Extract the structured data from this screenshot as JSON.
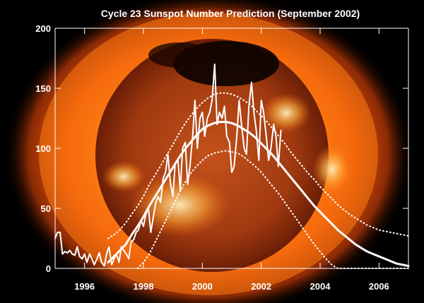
{
  "chart_data": {
    "type": "line",
    "title": "Cycle 23 Sunspot Number Prediction (September 2002)",
    "xlabel": "",
    "ylabel": "",
    "xlim": [
      1995.0,
      2007.0
    ],
    "ylim": [
      0,
      200
    ],
    "x_ticks": [
      1996,
      1998,
      2000,
      2002,
      2004,
      2006
    ],
    "y_ticks": [
      0,
      50,
      100,
      150,
      200
    ],
    "x_tick_labels": [
      "1996",
      "1998",
      "2000",
      "2002",
      "2004",
      "2006"
    ],
    "y_tick_labels": [
      "0",
      "50",
      "100",
      "150",
      "200"
    ],
    "grid": false,
    "legend": "none",
    "background": "X-ray image of the Sun",
    "colors": {
      "series": "#ffffff",
      "text": "#ffffff",
      "background": "#000000",
      "sun_core": "#b83a0c",
      "sun_corona": "#ff7a10"
    },
    "series": [
      {
        "style": "solid-thin",
        "x": [
          1995.0,
          1995.08,
          1995.17,
          1995.25,
          1995.33,
          1995.42,
          1995.5,
          1995.58,
          1995.67,
          1995.75,
          1995.83,
          1995.92,
          1996.0,
          1996.08,
          1996.17,
          1996.25,
          1996.33,
          1996.42,
          1996.5,
          1996.58,
          1996.67,
          1996.75,
          1996.83,
          1996.92,
          1997.0,
          1997.08,
          1997.17,
          1997.25,
          1997.33,
          1997.42,
          1997.5,
          1997.58,
          1997.67,
          1997.75,
          1997.83,
          1997.92,
          1998.0,
          1998.08,
          1998.17,
          1998.25,
          1998.33,
          1998.42,
          1998.5,
          1998.58,
          1998.67,
          1998.75,
          1998.83,
          1998.92,
          1999.0,
          1999.08,
          1999.17,
          1999.25,
          1999.33,
          1999.42,
          1999.5,
          1999.58,
          1999.67,
          1999.75,
          1999.83,
          1999.92,
          2000.0,
          2000.08,
          2000.17,
          2000.25,
          2000.33,
          2000.42,
          2000.5,
          2000.58,
          2000.67,
          2000.75,
          2000.83,
          2000.92,
          2001.0,
          2001.08,
          2001.17,
          2001.25,
          2001.33,
          2001.42,
          2001.5,
          2001.58,
          2001.67,
          2001.75,
          2001.83,
          2001.92,
          2002.0,
          2002.08,
          2002.17,
          2002.25,
          2002.33,
          2002.42,
          2002.5,
          2002.58,
          2002.67
        ],
        "values": [
          25,
          30,
          30,
          12,
          14,
          13,
          15,
          12,
          11,
          18,
          10,
          8,
          12,
          5,
          12,
          8,
          3,
          8,
          13,
          5,
          2,
          12,
          18,
          3,
          8,
          12,
          5,
          18,
          15,
          12,
          8,
          22,
          24,
          30,
          32,
          40,
          35,
          45,
          50,
          30,
          42,
          55,
          60,
          55,
          75,
          80,
          95,
          70,
          60,
          88,
          90,
          65,
          100,
          105,
          70,
          85,
          110,
          140,
          100,
          125,
          130,
          110,
          125,
          130,
          140,
          170,
          120,
          130,
          125,
          135,
          110,
          105,
          80,
          85,
          110,
          140,
          120,
          100,
          95,
          135,
          155,
          130,
          115,
          90,
          140,
          130,
          110,
          90,
          100,
          120,
          110,
          85,
          115
        ]
      },
      {
        "style": "solid-thick",
        "x": [
          1996.8,
          1997.0,
          1997.2,
          1997.4,
          1997.6,
          1997.8,
          1998.0,
          1998.2,
          1998.4,
          1998.6,
          1998.8,
          1999.0,
          1999.2,
          1999.4,
          1999.6,
          1999.8,
          2000.0,
          2000.2,
          2000.4,
          2000.6,
          2000.8,
          2001.0,
          2001.2,
          2001.4,
          2001.6,
          2001.8,
          2002.0,
          2002.2,
          2002.4,
          2002.6,
          2002.8,
          2003.0,
          2003.2,
          2003.4,
          2003.6,
          2003.8,
          2004.0,
          2004.2,
          2004.4,
          2004.6,
          2004.8,
          2005.0,
          2005.2,
          2005.4,
          2005.6,
          2005.8,
          2006.0,
          2006.2,
          2006.4,
          2006.6,
          2006.8,
          2007.0
        ],
        "values": [
          5,
          10,
          15,
          20,
          28,
          35,
          43,
          52,
          60,
          68,
          76,
          84,
          92,
          99,
          105,
          111,
          116,
          119,
          121,
          122,
          122,
          121,
          119,
          116,
          113,
          109,
          104,
          99,
          94,
          88,
          82,
          76,
          70,
          64,
          58,
          52,
          47,
          42,
          37,
          32,
          28,
          24,
          20,
          17,
          14,
          12,
          10,
          8,
          6,
          4,
          3,
          2
        ]
      },
      {
        "style": "dotted",
        "x": [
          1996.8,
          1997.0,
          1997.2,
          1997.4,
          1997.6,
          1997.8,
          1998.0,
          1998.2,
          1998.4,
          1998.6,
          1998.8,
          1999.0,
          1999.2,
          1999.4,
          1999.6,
          1999.8,
          2000.0,
          2000.2,
          2000.4,
          2000.6,
          2000.8,
          2001.0,
          2001.2,
          2001.4,
          2001.6,
          2001.8,
          2002.0,
          2002.2,
          2002.4,
          2002.6,
          2002.8,
          2003.0,
          2003.2,
          2003.4,
          2003.6,
          2003.8,
          2004.0,
          2004.2,
          2004.4,
          2004.6,
          2004.8,
          2005.0,
          2005.2,
          2005.4,
          2005.6,
          2005.8,
          2006.0,
          2006.2,
          2006.4,
          2006.6,
          2006.8,
          2007.0
        ],
        "values": [
          25,
          28,
          32,
          38,
          45,
          52,
          60,
          70,
          78,
          86,
          95,
          103,
          112,
          120,
          127,
          133,
          138,
          142,
          145,
          146,
          146,
          145,
          143,
          140,
          137,
          132,
          127,
          122,
          116,
          110,
          104,
          97,
          91,
          85,
          79,
          74,
          68,
          63,
          58,
          53,
          49,
          45,
          42,
          39,
          36,
          34,
          32,
          31,
          30,
          29,
          28,
          27
        ]
      },
      {
        "style": "dotted",
        "x": [
          1997.8,
          1998.0,
          1998.2,
          1998.4,
          1998.6,
          1998.8,
          1999.0,
          1999.2,
          1999.4,
          1999.6,
          1999.8,
          2000.0,
          2000.2,
          2000.4,
          2000.6,
          2000.8,
          2001.0,
          2001.2,
          2001.4,
          2001.6,
          2001.8,
          2002.0,
          2002.2,
          2002.4,
          2002.6,
          2002.8,
          2003.0,
          2003.2,
          2003.4,
          2003.6,
          2003.8,
          2004.0,
          2004.2,
          2004.4,
          2004.6,
          2004.8,
          2005.0,
          2005.2,
          2005.4,
          2005.6,
          2005.8,
          2006.0,
          2006.2,
          2006.4,
          2006.6,
          2006.8,
          2007.0
        ],
        "values": [
          0,
          5,
          12,
          22,
          32,
          42,
          52,
          62,
          71,
          79,
          85,
          90,
          94,
          96,
          97,
          98,
          97,
          96,
          93,
          89,
          85,
          80,
          74,
          68,
          62,
          55,
          48,
          41,
          34,
          27,
          20,
          14,
          8,
          3,
          0,
          0,
          0,
          0,
          0,
          0,
          0,
          0,
          0,
          0,
          0,
          0,
          0
        ]
      }
    ]
  }
}
